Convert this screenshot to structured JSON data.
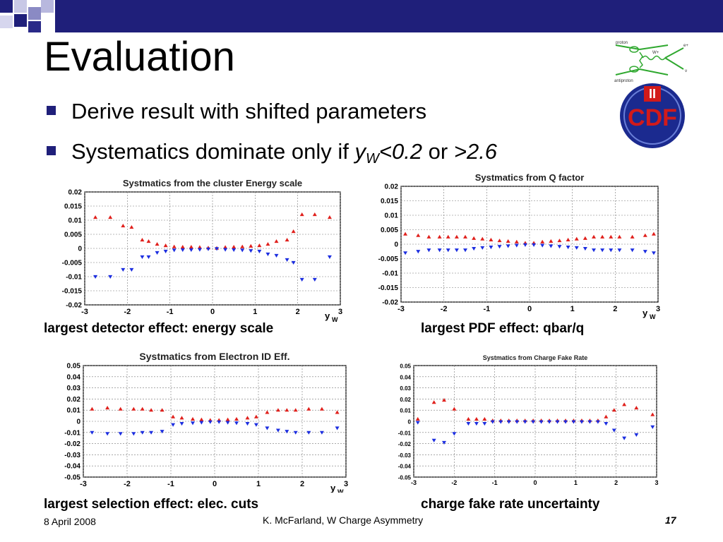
{
  "slide": {
    "title": "Evaluation",
    "bullets": [
      {
        "text": "Derive result with shifted parameters"
      },
      {
        "prefix": "Systematics dominate only if ",
        "var": "y",
        "sub": "W",
        "cond1": "<0.2",
        "mid": " or ",
        "cond2": ">2.6"
      }
    ],
    "captions": [
      "largest detector effect: energy scale",
      "largest PDF effect: qbar/q",
      "largest selection effect: elec. cuts",
      "charge fake rate uncertainty"
    ],
    "footer": {
      "date": "8 April 2008",
      "author": "K. McFarland, W Charge Asymmetry",
      "page": "17"
    },
    "logo": {
      "text": "CDF",
      "roman": "II",
      "diagram_labels": [
        "proton",
        "antiproton",
        "W+",
        "e+",
        "ν"
      ]
    },
    "colors": {
      "bullet": "#1f1f7a",
      "up_marker": "#e0201c",
      "down_marker": "#1c2ee0",
      "logo_blue": "#1b2a8f",
      "logo_red": "#d21a1a"
    }
  },
  "chart_data": [
    {
      "type": "scatter",
      "title": "Systmatics from the cluster Energy scale",
      "xlabel": "y",
      "xlabel_sub": "W",
      "xlim": [
        -3,
        3
      ],
      "ylim": [
        -0.02,
        0.02
      ],
      "yticks": [
        "0.02",
        "0.015",
        "0.01",
        "0.005",
        "0",
        "-0.005",
        "-0.01",
        "-0.015",
        "-0.02"
      ],
      "xticks": [
        "-3",
        "-2",
        "-1",
        "0",
        "1",
        "2",
        "3"
      ],
      "grid": true,
      "x": [
        -2.75,
        -2.4,
        -2.1,
        -1.9,
        -1.65,
        -1.5,
        -1.3,
        -1.1,
        -0.9,
        -0.7,
        -0.5,
        -0.3,
        -0.1,
        0.1,
        0.3,
        0.5,
        0.7,
        0.9,
        1.1,
        1.3,
        1.5,
        1.75,
        1.9,
        2.1,
        2.4,
        2.75
      ],
      "series": [
        {
          "marker": "triangle-up",
          "values": [
            0.011,
            0.011,
            0.008,
            0.0075,
            0.003,
            0.0025,
            0.0015,
            0.001,
            0.0006,
            0.0005,
            0.0005,
            0.0004,
            0.0002,
            0.0001,
            0.0004,
            0.0005,
            0.0006,
            0.0008,
            0.001,
            0.0015,
            0.0025,
            0.003,
            0.006,
            0.012,
            0.012,
            0.011
          ]
        },
        {
          "marker": "triangle-down",
          "values": [
            -0.01,
            -0.01,
            -0.0075,
            -0.0075,
            -0.003,
            -0.003,
            -0.0015,
            -0.001,
            -0.0006,
            -0.0005,
            -0.0005,
            -0.0004,
            -0.0002,
            -0.0001,
            -0.0004,
            -0.0005,
            -0.0006,
            -0.0008,
            -0.001,
            -0.002,
            -0.0025,
            -0.004,
            -0.005,
            -0.011,
            -0.011,
            -0.003
          ]
        }
      ]
    },
    {
      "type": "scatter",
      "title": "Systmatics from Q factor",
      "xlabel": "y",
      "xlabel_sub": "W",
      "xlim": [
        -3,
        3
      ],
      "ylim": [
        -0.02,
        0.02
      ],
      "yticks": [
        "0.02",
        "0.015",
        "0.01",
        "0.005",
        "0",
        "-0.005",
        "-0.01",
        "-0.015",
        "-0.02"
      ],
      "xticks": [
        "-3",
        "-2",
        "-1",
        "0",
        "1",
        "2",
        "3"
      ],
      "grid": true,
      "x": [
        -2.9,
        -2.6,
        -2.35,
        -2.1,
        -1.9,
        -1.7,
        -1.5,
        -1.3,
        -1.1,
        -0.9,
        -0.7,
        -0.5,
        -0.3,
        -0.1,
        0.1,
        0.3,
        0.5,
        0.7,
        0.9,
        1.1,
        1.3,
        1.5,
        1.7,
        1.9,
        2.1,
        2.4,
        2.7,
        2.9
      ],
      "series": [
        {
          "marker": "triangle-up",
          "values": [
            0.0035,
            0.003,
            0.0025,
            0.0025,
            0.0025,
            0.0025,
            0.0025,
            0.002,
            0.0018,
            0.0015,
            0.0012,
            0.001,
            0.0008,
            0.0004,
            0.0004,
            0.0008,
            0.001,
            0.0012,
            0.0015,
            0.0018,
            0.002,
            0.0025,
            0.0025,
            0.0025,
            0.0025,
            0.0025,
            0.003,
            0.0035
          ]
        },
        {
          "marker": "triangle-down",
          "values": [
            -0.003,
            -0.0025,
            -0.002,
            -0.002,
            -0.002,
            -0.002,
            -0.002,
            -0.0015,
            -0.0012,
            -0.001,
            -0.0008,
            -0.0006,
            -0.0004,
            -0.0002,
            -0.0002,
            -0.0004,
            -0.0006,
            -0.0008,
            -0.001,
            -0.0012,
            -0.0015,
            -0.002,
            -0.002,
            -0.002,
            -0.002,
            -0.002,
            -0.0025,
            -0.003
          ]
        }
      ]
    },
    {
      "type": "scatter",
      "title": "Systmatics from Electron ID Eff.",
      "xlabel": "y",
      "xlabel_sub": "W",
      "xlim": [
        -3,
        3
      ],
      "ylim": [
        -0.05,
        0.05
      ],
      "yticks": [
        "0.05",
        "0.04",
        "0.03",
        "0.02",
        "0.01",
        "0",
        "-0.01",
        "-0.02",
        "-0.03",
        "-0.04",
        "-0.05"
      ],
      "xticks": [
        "-3",
        "-2",
        "-1",
        "0",
        "1",
        "2",
        "3"
      ],
      "grid": true,
      "x": [
        -2.8,
        -2.45,
        -2.15,
        -1.85,
        -1.65,
        -1.45,
        -1.2,
        -0.95,
        -0.75,
        -0.5,
        -0.3,
        -0.1,
        0.1,
        0.3,
        0.5,
        0.75,
        0.95,
        1.2,
        1.45,
        1.65,
        1.85,
        2.15,
        2.45,
        2.8
      ],
      "series": [
        {
          "marker": "triangle-up",
          "values": [
            0.011,
            0.012,
            0.011,
            0.011,
            0.011,
            0.01,
            0.01,
            0.004,
            0.003,
            0.002,
            0.0015,
            0.001,
            0.001,
            0.0015,
            0.002,
            0.003,
            0.004,
            0.008,
            0.01,
            0.01,
            0.01,
            0.011,
            0.011,
            0.008
          ]
        },
        {
          "marker": "triangle-down",
          "values": [
            -0.01,
            -0.011,
            -0.011,
            -0.011,
            -0.01,
            -0.01,
            -0.009,
            -0.003,
            -0.002,
            -0.0015,
            -0.001,
            -0.0005,
            -0.0005,
            -0.001,
            -0.0015,
            -0.002,
            -0.003,
            -0.006,
            -0.008,
            -0.009,
            -0.01,
            -0.01,
            -0.01,
            -0.006
          ]
        }
      ]
    },
    {
      "type": "scatter",
      "title": "Systmatics from Charge Fake Rate",
      "xlabel": "",
      "xlabel_sub": "",
      "xlim": [
        -3,
        3
      ],
      "ylim": [
        -0.05,
        0.05
      ],
      "yticks": [
        "0.05",
        "0.04",
        "0.03",
        "0.02",
        "0.01",
        "0",
        "-0.01",
        "-0.02",
        "-0.03",
        "-0.04",
        "-0.05"
      ],
      "xticks": [
        "-3",
        "-2",
        "-1",
        "0",
        "1",
        "2",
        "3"
      ],
      "grid": true,
      "x": [
        -2.9,
        -2.5,
        -2.25,
        -2.0,
        -1.65,
        -1.45,
        -1.25,
        -1.05,
        -0.85,
        -0.65,
        -0.45,
        -0.25,
        -0.05,
        0.15,
        0.35,
        0.55,
        0.75,
        0.95,
        1.15,
        1.35,
        1.55,
        1.75,
        1.95,
        2.2,
        2.5,
        2.9
      ],
      "series": [
        {
          "marker": "triangle-up",
          "values": [
            0.002,
            0.017,
            0.019,
            0.011,
            0.002,
            0.002,
            0.002,
            0.0006,
            0.0006,
            0.0006,
            0.0006,
            0.0006,
            0.0006,
            0.0006,
            0.0006,
            0.0006,
            0.0006,
            0.0006,
            0.0006,
            0.0006,
            0.0006,
            0.004,
            0.01,
            0.015,
            0.012,
            0.006
          ]
        },
        {
          "marker": "triangle-down",
          "values": [
            -0.001,
            -0.017,
            -0.019,
            -0.011,
            -0.002,
            -0.002,
            -0.002,
            -0.0004,
            -0.0004,
            -0.0004,
            -0.0004,
            -0.0004,
            -0.0004,
            -0.0004,
            -0.0004,
            -0.0004,
            -0.0004,
            -0.0004,
            -0.0004,
            -0.0004,
            -0.0004,
            -0.002,
            -0.008,
            -0.015,
            -0.012,
            -0.005
          ]
        }
      ]
    }
  ]
}
